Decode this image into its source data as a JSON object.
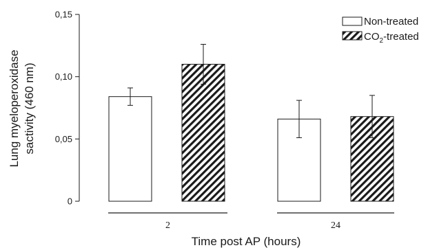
{
  "chart_data": {
    "type": "bar",
    "categories": [
      "2",
      "24"
    ],
    "series": [
      {
        "name": "Non-treated",
        "pattern": "open",
        "values": [
          0.084,
          0.066
        ],
        "error": [
          0.007,
          0.015
        ]
      },
      {
        "name": "CO2-treated",
        "name_prefix": "CO",
        "name_subscript": "2",
        "name_suffix": "-treated",
        "pattern": "diagonal-hatch",
        "values": [
          0.11,
          0.068
        ],
        "error": [
          0.016,
          0.017
        ]
      }
    ],
    "xlabel": "Time post AP (hours)",
    "ylabel_line1": "Lung myeloperoxidase",
    "ylabel_line2": "sactivity (460 nm)",
    "ylim": [
      0,
      0.15
    ],
    "yticks": [
      0,
      0.05,
      0.1,
      0.15
    ],
    "ytick_labels": [
      "0",
      "0,05",
      "0,10",
      "0,15"
    ],
    "grid": false,
    "legend_position": "top-right",
    "colors": {
      "ink": "#1a1a1a",
      "bar_fill": "#ffffff"
    }
  }
}
